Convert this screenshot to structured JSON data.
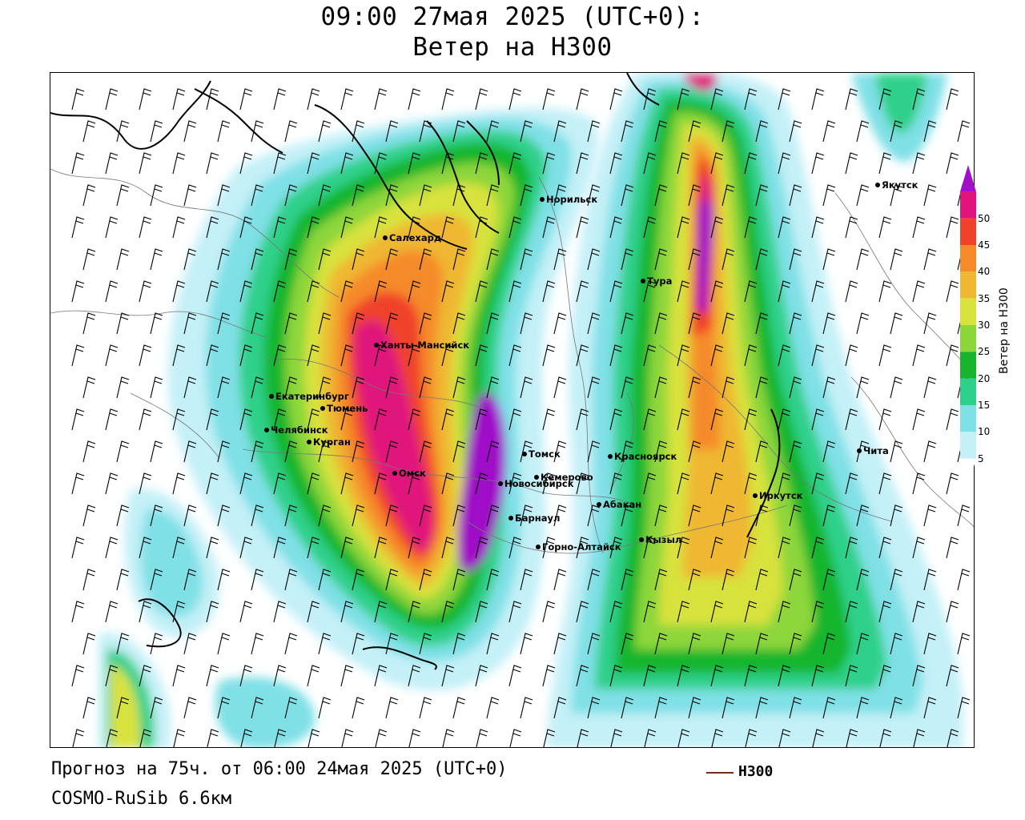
{
  "title": {
    "line1": "09:00 27мая 2025 (UTC+0):",
    "line2": "Ветер на H300"
  },
  "footer": {
    "forecast": "Прогноз на 75ч. от 06:00 24мая 2025 (UTC+0)",
    "model": "COSMO-RuSib 6.6км"
  },
  "legend": {
    "h300_label": "H300",
    "h300_color": "#7a2a1a"
  },
  "colorbar": {
    "title": "Ветер на H300",
    "ticks": [
      "5",
      "10",
      "15",
      "20",
      "25",
      "30",
      "35",
      "40",
      "45",
      "50"
    ],
    "colors": [
      "#ffffff",
      "#c4f0f8",
      "#7fe0e6",
      "#2fd08a",
      "#17b52e",
      "#8dd63a",
      "#d8e23c",
      "#efb732",
      "#f58a2a",
      "#f0422a",
      "#e0147c",
      "#a010c8"
    ]
  },
  "cities": [
    {
      "name": "Якутск"
    },
    {
      "name": "Норильск"
    },
    {
      "name": "Салехард"
    },
    {
      "name": "Тура"
    },
    {
      "name": "Ханты-Мансийск"
    },
    {
      "name": "Екатеринбург"
    },
    {
      "name": "Тюмень"
    },
    {
      "name": "Челябинск"
    },
    {
      "name": "Курган"
    },
    {
      "name": "Омск"
    },
    {
      "name": "Томск"
    },
    {
      "name": "Новосибирск"
    },
    {
      "name": "Кемерово"
    },
    {
      "name": "Красноярск"
    },
    {
      "name": "Чита"
    },
    {
      "name": "Абакан"
    },
    {
      "name": "Иркутск"
    },
    {
      "name": "Барнаул"
    },
    {
      "name": "Кызыл"
    },
    {
      "name": "Горно-Алтайск"
    }
  ]
}
